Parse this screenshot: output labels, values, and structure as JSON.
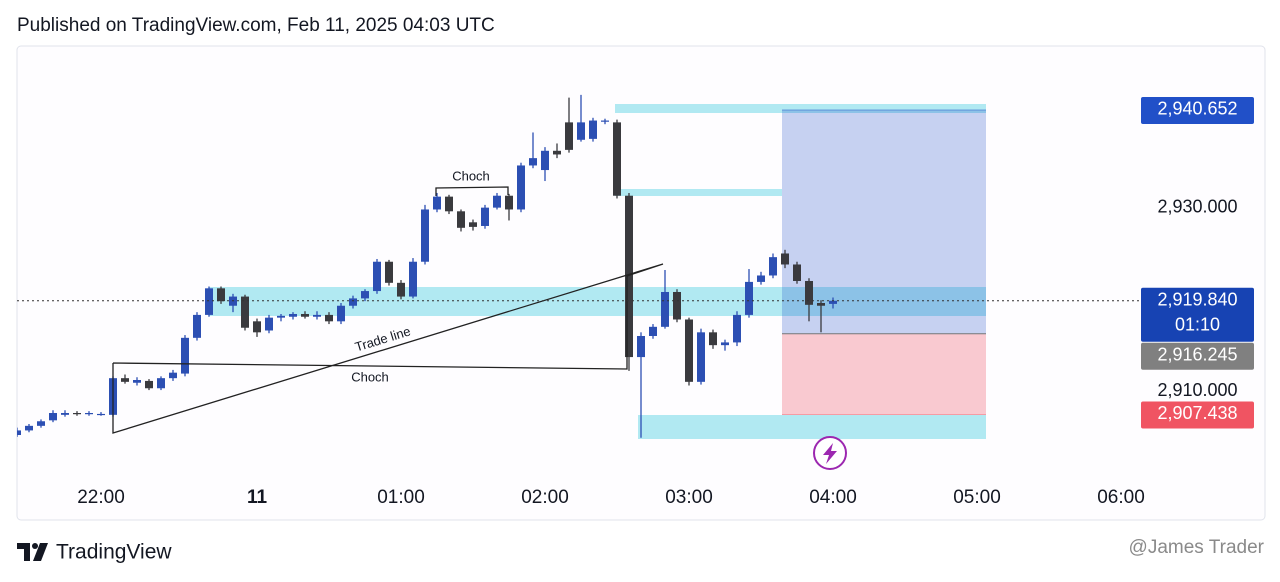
{
  "header": {
    "text": "Published on TradingView.com, Feb 11, 2025 04:03 UTC"
  },
  "footer": {
    "brand": "TradingView",
    "watermark": "@James Trader"
  },
  "chart_data": {
    "type": "candlestick",
    "categories": [
      null,
      null,
      null,
      null,
      null,
      null,
      null,
      "22:00",
      null,
      null,
      null,
      null,
      null,
      null,
      null,
      null,
      null,
      null,
      null,
      null,
      "11",
      null,
      null,
      null,
      null,
      null,
      null,
      null,
      null,
      null,
      null,
      null,
      "01:00",
      null,
      null,
      null,
      null,
      null,
      null,
      null,
      null,
      null,
      null,
      null,
      "02:00",
      null,
      null,
      null,
      null,
      null,
      null,
      null,
      null,
      null,
      null,
      null,
      "03:00",
      null,
      null,
      null,
      null,
      null,
      null,
      null,
      null,
      null,
      null,
      null,
      "04:00",
      null,
      null,
      null,
      null,
      null,
      null,
      null,
      null,
      null,
      null,
      null,
      "05:00",
      null,
      null,
      null,
      null,
      null,
      null,
      null,
      null,
      null,
      null,
      null,
      "06:00",
      null
    ],
    "open": [
      2905.2,
      2905.7,
      2906.2,
      2906.8,
      2907.4,
      2907.6,
      2907.5,
      2907.5,
      2907.4,
      2911.4,
      2910.9,
      2911.1,
      2910.3,
      2911.4,
      2911.9,
      2915.8,
      2918.3,
      2921.2,
      2919.3,
      2920.3,
      2917.6,
      2916.6,
      2918.0,
      2918.1,
      2918.4,
      2918.1,
      2918.3,
      2917.6,
      2919.3,
      2920.1,
      2920.9,
      2924.1,
      2921.8,
      2920.3,
      2924.1,
      2929.8,
      2931.2,
      2929.6,
      2928.4,
      2928.0,
      2930.0,
      2931.3,
      2929.8,
      2934.6,
      2934.1,
      2936.2,
      2939.3,
      2937.4,
      2937.5,
      2939.4,
      2939.3,
      2931.3,
      2913.7,
      2916.0,
      2917.0,
      2920.8,
      2917.8,
      2911.0,
      2916.4,
      2915.0,
      2915.3,
      2918.3,
      2921.9,
      2922.6,
      2925.0,
      2923.8,
      2922.0,
      2919.6,
      2919.5,
      null,
      null,
      null,
      null,
      null,
      null,
      null,
      null,
      null,
      null,
      null,
      null,
      null,
      null,
      null,
      null,
      null,
      null,
      null,
      null,
      null,
      null,
      null,
      null,
      null
    ],
    "high": [
      2906.0,
      2906.4,
      2906.9,
      2907.9,
      2907.9,
      2907.8,
      2907.8,
      2907.7,
      2911.6,
      2911.8,
      2911.5,
      2911.3,
      2911.6,
      2912.3,
      2916.1,
      2918.6,
      2921.4,
      2921.4,
      2920.6,
      2920.5,
      2917.9,
      2918.3,
      2918.4,
      2918.6,
      2918.7,
      2918.7,
      2918.6,
      2919.6,
      2920.4,
      2921.1,
      2924.4,
      2924.3,
      2922.1,
      2924.5,
      2930.3,
      2931.6,
      2931.4,
      2929.8,
      2928.7,
      2930.3,
      2931.6,
      2931.5,
      2934.9,
      2938.2,
      2936.6,
      2937.0,
      2942.0,
      2942.3,
      2939.8,
      2939.7,
      2939.6,
      2931.6,
      2916.4,
      2917.3,
      2923.2,
      2921.1,
      2918.0,
      2916.8,
      2916.7,
      2915.6,
      2918.7,
      2923.3,
      2923.0,
      2925.0,
      2925.4,
      2924.1,
      2922.3,
      2919.9,
      2920.2,
      null,
      null,
      null,
      null,
      null,
      null,
      null,
      null,
      null,
      null,
      null,
      null,
      null,
      null,
      null,
      null,
      null,
      null,
      null,
      null,
      null,
      null,
      null,
      null,
      null
    ],
    "low": [
      2905.0,
      2905.5,
      2906.0,
      2906.6,
      2907.2,
      2907.3,
      2907.3,
      2907.3,
      2907.2,
      2910.8,
      2910.6,
      2910.1,
      2910.1,
      2911.1,
      2911.6,
      2915.5,
      2918.1,
      2919.5,
      2918.6,
      2916.6,
      2915.9,
      2916.3,
      2917.6,
      2917.8,
      2917.9,
      2917.8,
      2917.3,
      2917.3,
      2919.0,
      2919.8,
      2920.6,
      2921.5,
      2920.0,
      2920.1,
      2923.8,
      2929.5,
      2929.3,
      2927.4,
      2927.5,
      2927.7,
      2929.8,
      2928.6,
      2929.5,
      2934.3,
      2932.9,
      2935.4,
      2936.0,
      2937.2,
      2937.2,
      2939.1,
      2931.0,
      2912.2,
      2904.9,
      2915.7,
      2916.8,
      2917.5,
      2910.6,
      2910.7,
      2914.6,
      2914.4,
      2914.9,
      2918.0,
      2921.6,
      2922.3,
      2923.4,
      2921.7,
      2917.6,
      2916.4,
      2919.0,
      null,
      null,
      null,
      null,
      null,
      null,
      null,
      null,
      null,
      null,
      null,
      null,
      null,
      null,
      null,
      null,
      null,
      null,
      null,
      null,
      null,
      null,
      null,
      null,
      null
    ],
    "close": [
      2905.7,
      2906.2,
      2906.7,
      2907.6,
      2907.6,
      2907.5,
      2907.6,
      2907.5,
      2911.4,
      2911.0,
      2911.2,
      2910.3,
      2911.4,
      2912.0,
      2915.8,
      2918.3,
      2921.2,
      2919.8,
      2920.3,
      2916.9,
      2916.4,
      2918.0,
      2918.2,
      2918.4,
      2918.1,
      2918.3,
      2917.6,
      2919.3,
      2920.1,
      2920.9,
      2924.1,
      2921.8,
      2920.3,
      2924.1,
      2929.8,
      2931.2,
      2929.6,
      2927.8,
      2927.9,
      2930.0,
      2931.3,
      2929.8,
      2934.6,
      2935.4,
      2936.2,
      2935.8,
      2936.3,
      2939.3,
      2939.5,
      2939.5,
      2931.3,
      2913.7,
      2916.0,
      2917.0,
      2920.8,
      2917.8,
      2911.0,
      2916.4,
      2915.0,
      2915.3,
      2918.3,
      2921.9,
      2922.6,
      2924.6,
      2923.8,
      2922.0,
      2919.4,
      2919.3,
      2919.84,
      null,
      null,
      null,
      null,
      null,
      null,
      null,
      null,
      null,
      null,
      null,
      null,
      null,
      null,
      null,
      null,
      null,
      null,
      null,
      null,
      null,
      null,
      null,
      null,
      null
    ],
    "up_color": "#2c4fb3",
    "down_color": "#3a3a3e",
    "ylim": [
      2895.93,
      2947.63
    ],
    "yticks": [
      {
        "value": 2930,
        "label": "2,930.000"
      },
      {
        "value": 2910,
        "label": "2,910.000"
      }
    ],
    "last_price": {
      "value": 2919.84,
      "label": "2,919.840",
      "countdown": "01:10",
      "color": "#1743b3"
    },
    "position": {
      "target": {
        "value": 2940.652,
        "label": "2,940.652",
        "color": "#2150c8"
      },
      "entry": {
        "value": 2916.245,
        "label": "2,916.245",
        "color": "#808080"
      },
      "stop": {
        "value": 2907.438,
        "label": "2,907.438",
        "color": "#f05462"
      }
    },
    "annotations": [
      "Choch",
      "Trade line",
      "Choch"
    ]
  }
}
